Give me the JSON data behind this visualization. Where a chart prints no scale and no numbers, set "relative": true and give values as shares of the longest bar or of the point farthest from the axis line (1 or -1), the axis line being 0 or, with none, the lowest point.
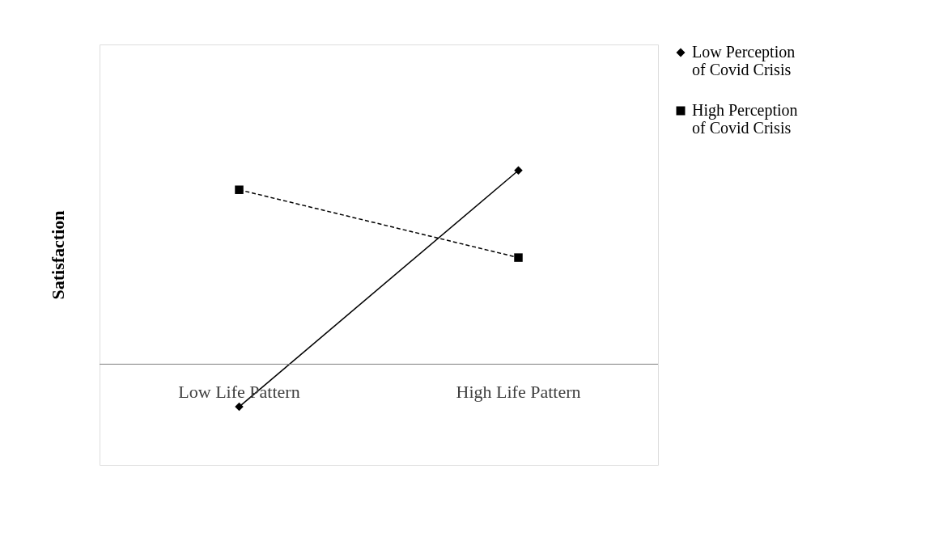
{
  "chart_data": {
    "type": "line",
    "ylabel": "Satisfaction",
    "relative": true,
    "categories": [
      "Low Life Pattern",
      "High Life Pattern"
    ],
    "legend": "top right",
    "grid": false,
    "series": [
      {
        "name": "Low Perception\nof Covid Crisis",
        "color": "#000000",
        "values": [
          -0.22,
          1
        ],
        "marker": "diamond",
        "line_style": "solid"
      },
      {
        "name": "High Perception\nof Covid Crisis",
        "color": "#000000",
        "values": [
          0.9,
          0.55
        ],
        "marker": "square",
        "line_style": "dashed"
      }
    ]
  }
}
